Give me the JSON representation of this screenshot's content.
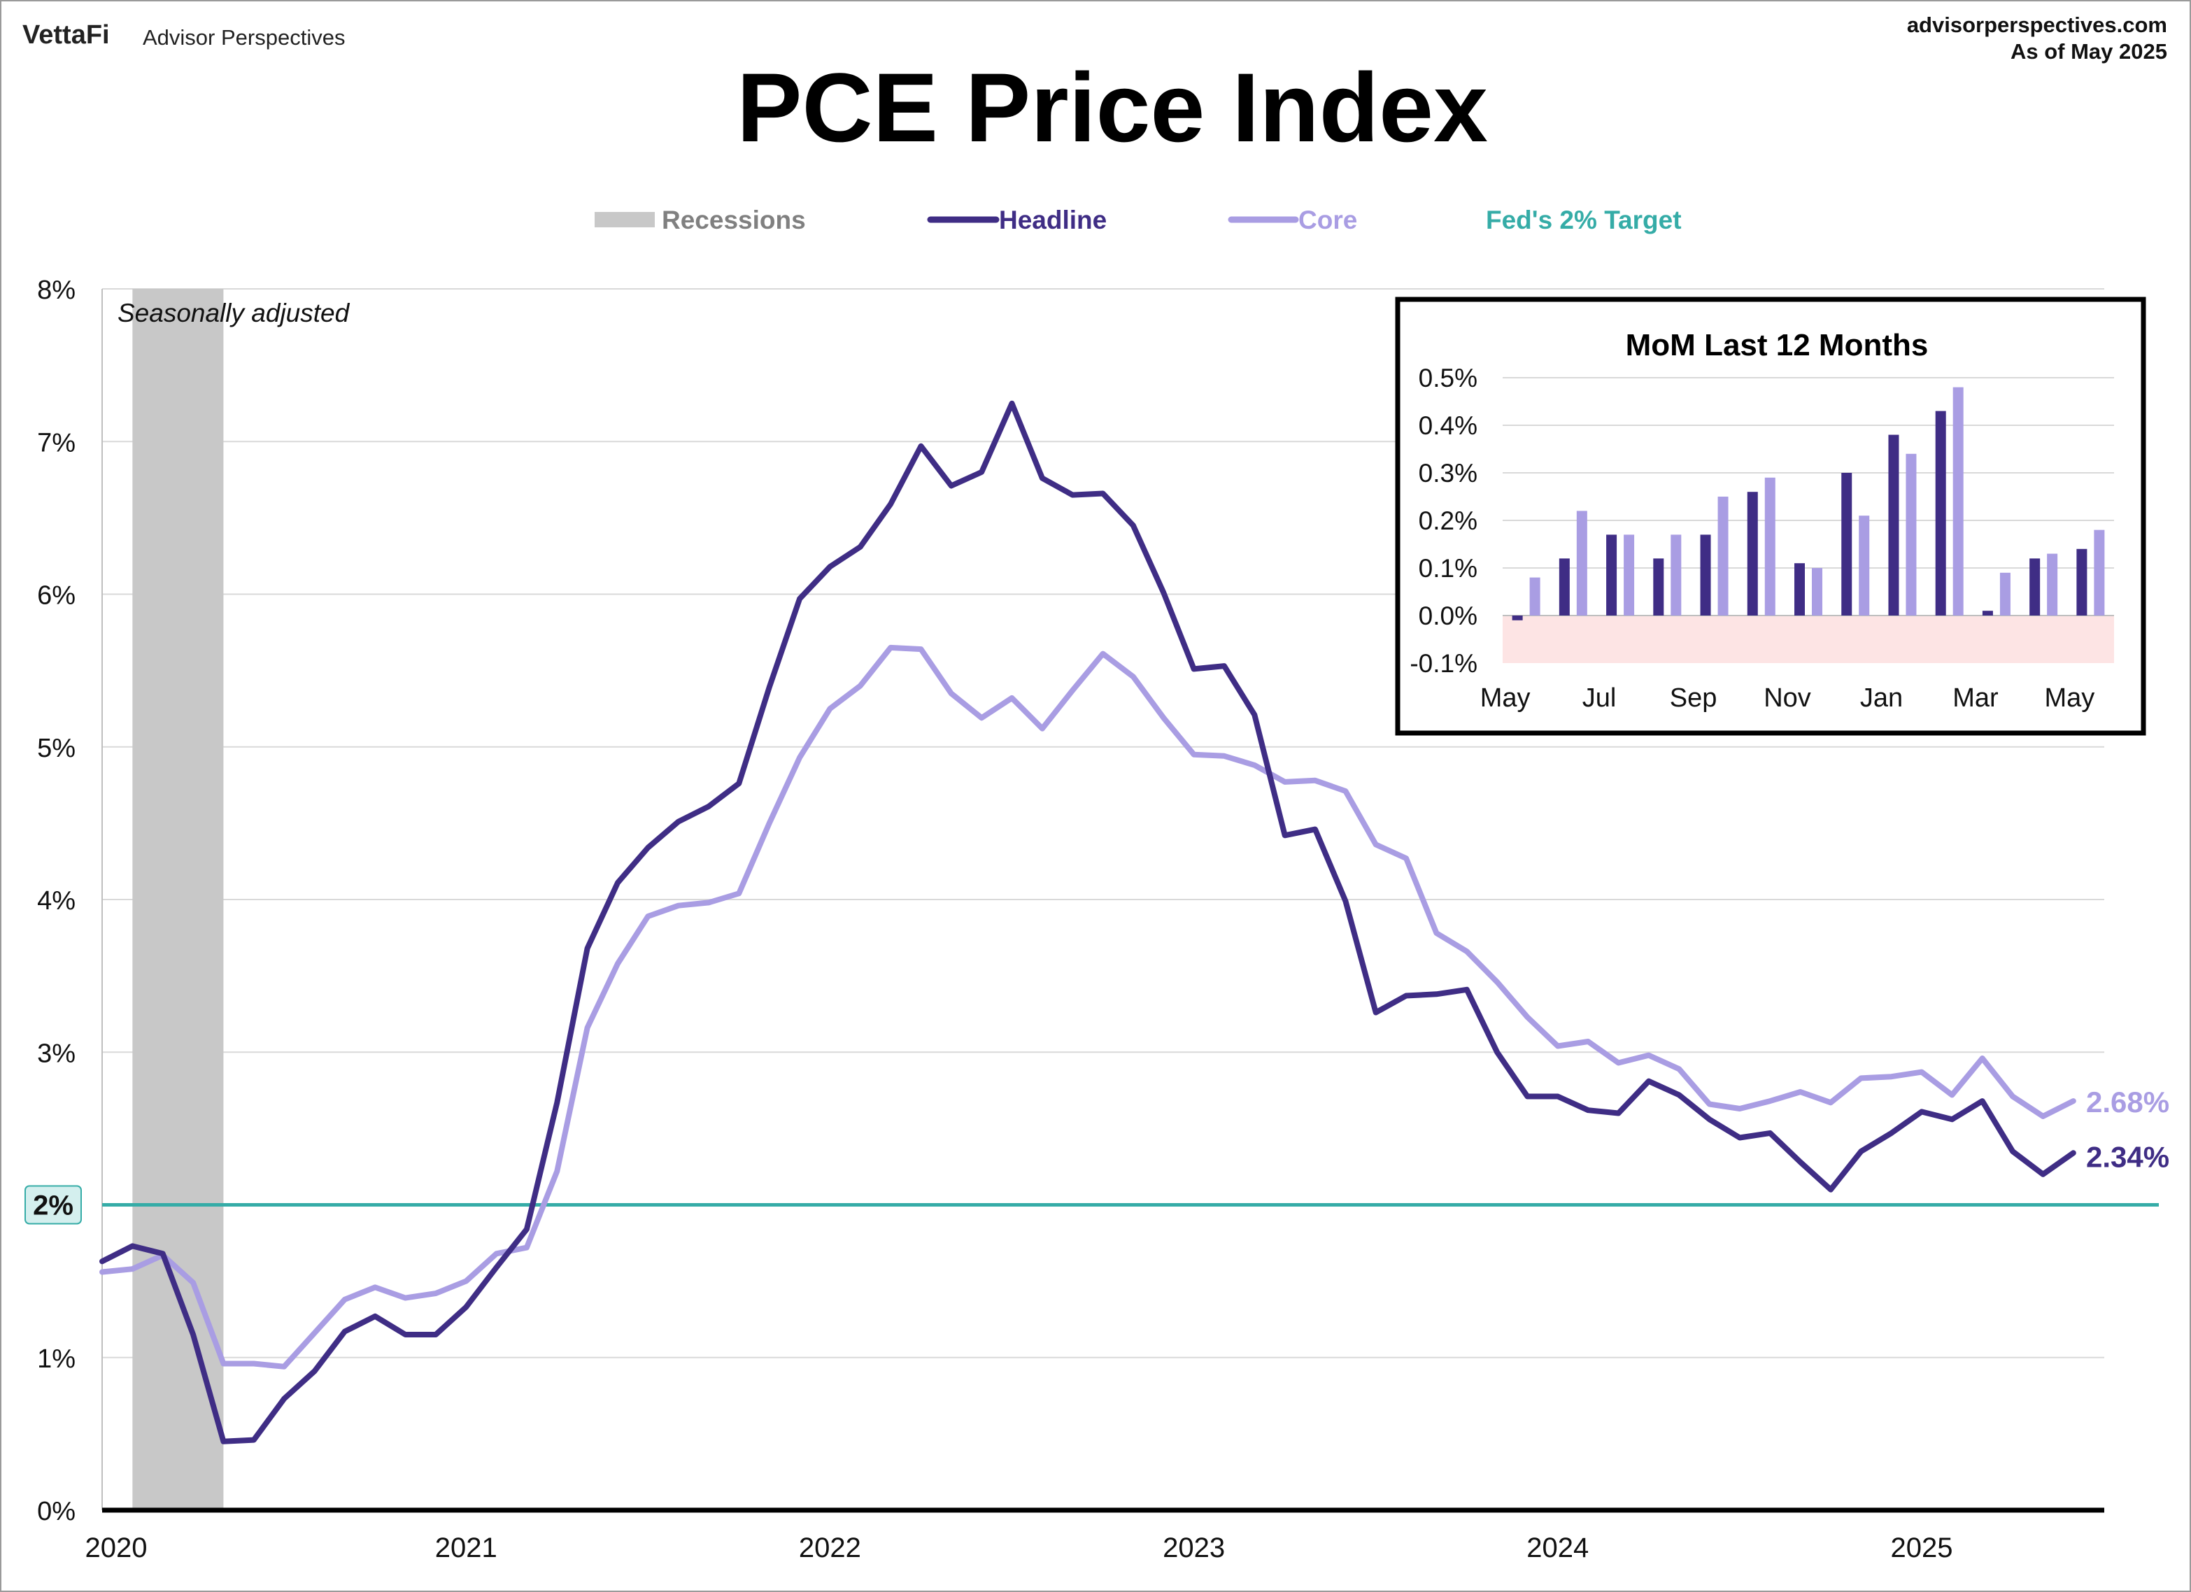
{
  "header": {
    "brand_logo_text": "VettaFi",
    "brand_name": "Advisor Perspectives",
    "source_site": "advisorperspectives.com",
    "as_of": "As of May 2025"
  },
  "colors": {
    "headline": "#3f2d85",
    "core": "#a99de3",
    "target": "#35aca7",
    "recession": "#c8c8c8",
    "grid": "#d9d9d9",
    "inset_negative_band": "#fde4e4"
  },
  "chart_data": [
    {
      "type": "line",
      "title": "PCE Price Index",
      "subtitle": "Seasonally adjusted",
      "legend": {
        "placement": "top",
        "items": [
          {
            "label": "Recessions",
            "kind": "band"
          },
          {
            "label": "Headline",
            "kind": "line"
          },
          {
            "label": "Core",
            "kind": "line"
          },
          {
            "label": "Fed's 2% Target",
            "kind": "text"
          }
        ]
      },
      "x_start": "2020-01",
      "x_ticks": [
        "2020",
        "2021",
        "2022",
        "2023",
        "2024",
        "2025"
      ],
      "y_ticks": [
        "0%",
        "1%",
        "2%",
        "3%",
        "4%",
        "5%",
        "6%",
        "7%",
        "8%"
      ],
      "ylim": [
        0,
        8
      ],
      "grid": true,
      "target_value": 2,
      "target_label": "2%",
      "recessions": [
        {
          "start": "2020-02",
          "end": "2020-04"
        }
      ],
      "series": [
        {
          "name": "Headline",
          "end_label": "2.34%",
          "values": [
            1.63,
            1.73,
            1.68,
            1.15,
            0.45,
            0.46,
            0.73,
            0.91,
            1.17,
            1.27,
            1.15,
            1.15,
            1.33,
            1.59,
            1.84,
            2.67,
            3.68,
            4.11,
            4.34,
            4.51,
            4.61,
            4.76,
            5.39,
            5.97,
            6.18,
            6.31,
            6.59,
            6.97,
            6.71,
            6.8,
            7.25,
            6.76,
            6.65,
            6.66,
            6.45,
            6.01,
            5.51,
            5.53,
            5.21,
            4.42,
            4.46,
            3.99,
            3.26,
            3.37,
            3.38,
            3.41,
            3.0,
            2.71,
            2.71,
            2.62,
            2.6,
            2.81,
            2.72,
            2.56,
            2.44,
            2.47,
            2.28,
            2.1,
            2.35,
            2.47,
            2.61,
            2.56,
            2.68,
            2.35,
            2.2,
            2.34
          ]
        },
        {
          "name": "Core",
          "end_label": "2.68%",
          "values": [
            1.56,
            1.58,
            1.67,
            1.49,
            0.96,
            0.96,
            0.94,
            1.16,
            1.38,
            1.46,
            1.39,
            1.42,
            1.5,
            1.68,
            1.72,
            2.22,
            3.16,
            3.58,
            3.89,
            3.96,
            3.98,
            4.04,
            4.5,
            4.93,
            5.25,
            5.4,
            5.65,
            5.64,
            5.35,
            5.19,
            5.32,
            5.12,
            5.37,
            5.61,
            5.46,
            5.19,
            4.95,
            4.94,
            4.88,
            4.77,
            4.78,
            4.71,
            4.36,
            4.27,
            3.78,
            3.66,
            3.46,
            3.23,
            3.04,
            3.07,
            2.93,
            2.98,
            2.89,
            2.66,
            2.63,
            2.68,
            2.74,
            2.67,
            2.83,
            2.84,
            2.87,
            2.72,
            2.96,
            2.71,
            2.58,
            2.68
          ]
        }
      ]
    },
    {
      "type": "bar",
      "title": "MoM Last 12 Months",
      "categories": [
        "May",
        "Jun",
        "Jul",
        "Aug",
        "Sep",
        "Oct",
        "Nov",
        "Dec",
        "Jan",
        "Feb",
        "Mar",
        "Apr",
        "May"
      ],
      "x_tick_labels": [
        "May",
        "",
        "Jul",
        "",
        "Sep",
        "",
        "Nov",
        "",
        "Jan",
        "",
        "Mar",
        "",
        "May"
      ],
      "y_ticks": [
        "-0.1%",
        "0.0%",
        "0.1%",
        "0.2%",
        "0.3%",
        "0.4%",
        "0.5%"
      ],
      "ylim": [
        -0.1,
        0.5
      ],
      "grid": true,
      "series": [
        {
          "name": "Headline",
          "values": [
            -0.01,
            0.12,
            0.17,
            0.12,
            0.17,
            0.26,
            0.11,
            0.3,
            0.38,
            0.43,
            0.01,
            0.12,
            0.14
          ]
        },
        {
          "name": "Core",
          "values": [
            0.08,
            0.22,
            0.17,
            0.17,
            0.25,
            0.29,
            0.1,
            0.21,
            0.34,
            0.48,
            0.09,
            0.13,
            0.18
          ]
        }
      ]
    }
  ]
}
